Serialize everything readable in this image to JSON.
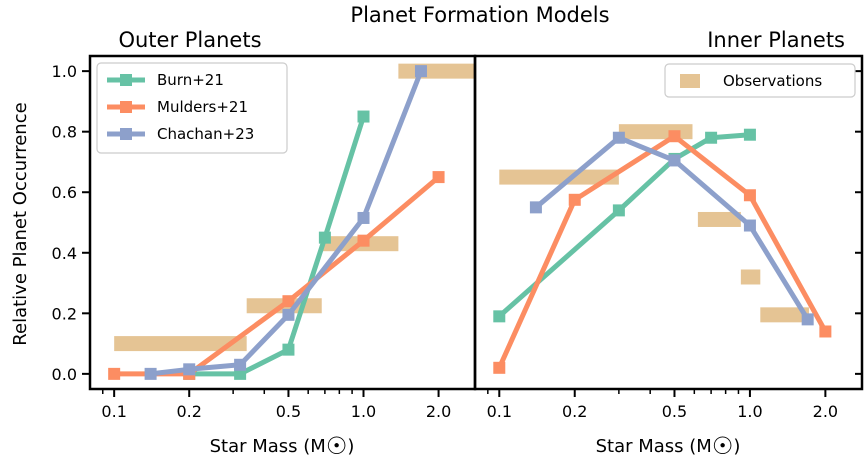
{
  "title": "Planet Formation Models",
  "xlabel_main": "Star Mass (M",
  "xlabel_symbol": "☉",
  "xlabel_close": ")",
  "ylabel": "Relative Planet Occurrence",
  "chart_data": [
    {
      "type": "line",
      "title": "Outer Planets",
      "xscale": "log",
      "xlim": [
        0.08,
        2.8
      ],
      "ylim": [
        -0.05,
        1.05
      ],
      "xticks": [
        0.1,
        0.2,
        0.5,
        1.0,
        2.0
      ],
      "xtick_labels": [
        "0.1",
        "0.2",
        "0.5",
        "1.0",
        "2.0"
      ],
      "yticks": [
        0.0,
        0.2,
        0.4,
        0.6,
        0.8,
        1.0
      ],
      "ytick_labels": [
        "0.0",
        "0.2",
        "0.4",
        "0.6",
        "0.8",
        "1.0"
      ],
      "legend": "top-left",
      "series": [
        {
          "name": "Burn+21",
          "color": "#66c2a5",
          "x": [
            0.2,
            0.32,
            0.5,
            0.7,
            1.0
          ],
          "y": [
            0.0,
            0.0,
            0.08,
            0.45,
            0.85
          ]
        },
        {
          "name": "Mulders+21",
          "color": "#fc8d62",
          "x": [
            0.1,
            0.2,
            0.5,
            1.0,
            2.0
          ],
          "y": [
            0.0,
            0.0,
            0.24,
            0.44,
            0.65
          ]
        },
        {
          "name": "Chachan+23",
          "color": "#8da0cb",
          "x": [
            0.14,
            0.2,
            0.32,
            0.5,
            1.0,
            1.7
          ],
          "y": [
            0.0,
            0.015,
            0.03,
            0.195,
            0.515,
            1.0
          ]
        }
      ],
      "observations": {
        "name": "Observations",
        "color": "#e5c494",
        "bands": [
          {
            "x0": 0.1,
            "x1": 0.34,
            "y": 0.1
          },
          {
            "x0": 0.34,
            "x1": 0.68,
            "y": 0.225
          },
          {
            "x0": 0.68,
            "x1": 1.38,
            "y": 0.43
          },
          {
            "x0": 1.38,
            "x1": 2.78,
            "y": 1.0
          }
        ]
      }
    },
    {
      "type": "line",
      "title": "Inner Planets",
      "xscale": "log",
      "xlim": [
        0.08,
        2.8
      ],
      "ylim": [
        -0.05,
        1.05
      ],
      "xticks": [
        0.1,
        0.2,
        0.5,
        1.0,
        2.0
      ],
      "xtick_labels": [
        "0.1",
        "0.2",
        "0.5",
        "1.0",
        "2.0"
      ],
      "legend": "top-right",
      "series": [
        {
          "name": "Burn+21",
          "color": "#66c2a5",
          "x": [
            0.1,
            0.3,
            0.5,
            0.7,
            1.0
          ],
          "y": [
            0.19,
            0.54,
            0.71,
            0.78,
            0.79
          ]
        },
        {
          "name": "Mulders+21",
          "color": "#fc8d62",
          "x": [
            0.1,
            0.2,
            0.5,
            1.0,
            2.0
          ],
          "y": [
            0.02,
            0.575,
            0.785,
            0.59,
            0.14
          ]
        },
        {
          "name": "Chachan+23",
          "color": "#8da0cb",
          "x": [
            0.14,
            0.3,
            0.5,
            1.0,
            1.7
          ],
          "y": [
            0.55,
            0.78,
            0.705,
            0.49,
            0.18
          ]
        }
      ],
      "observations": {
        "name": "Observations",
        "color": "#e5c494",
        "bands": [
          {
            "x0": 0.1,
            "x1": 0.3,
            "y": 0.65
          },
          {
            "x0": 0.3,
            "x1": 0.59,
            "y": 0.8
          },
          {
            "x0": 0.62,
            "x1": 0.92,
            "y": 0.51
          },
          {
            "x0": 0.92,
            "x1": 1.1,
            "y": 0.32
          },
          {
            "x0": 1.1,
            "x1": 1.72,
            "y": 0.195
          }
        ]
      }
    }
  ]
}
